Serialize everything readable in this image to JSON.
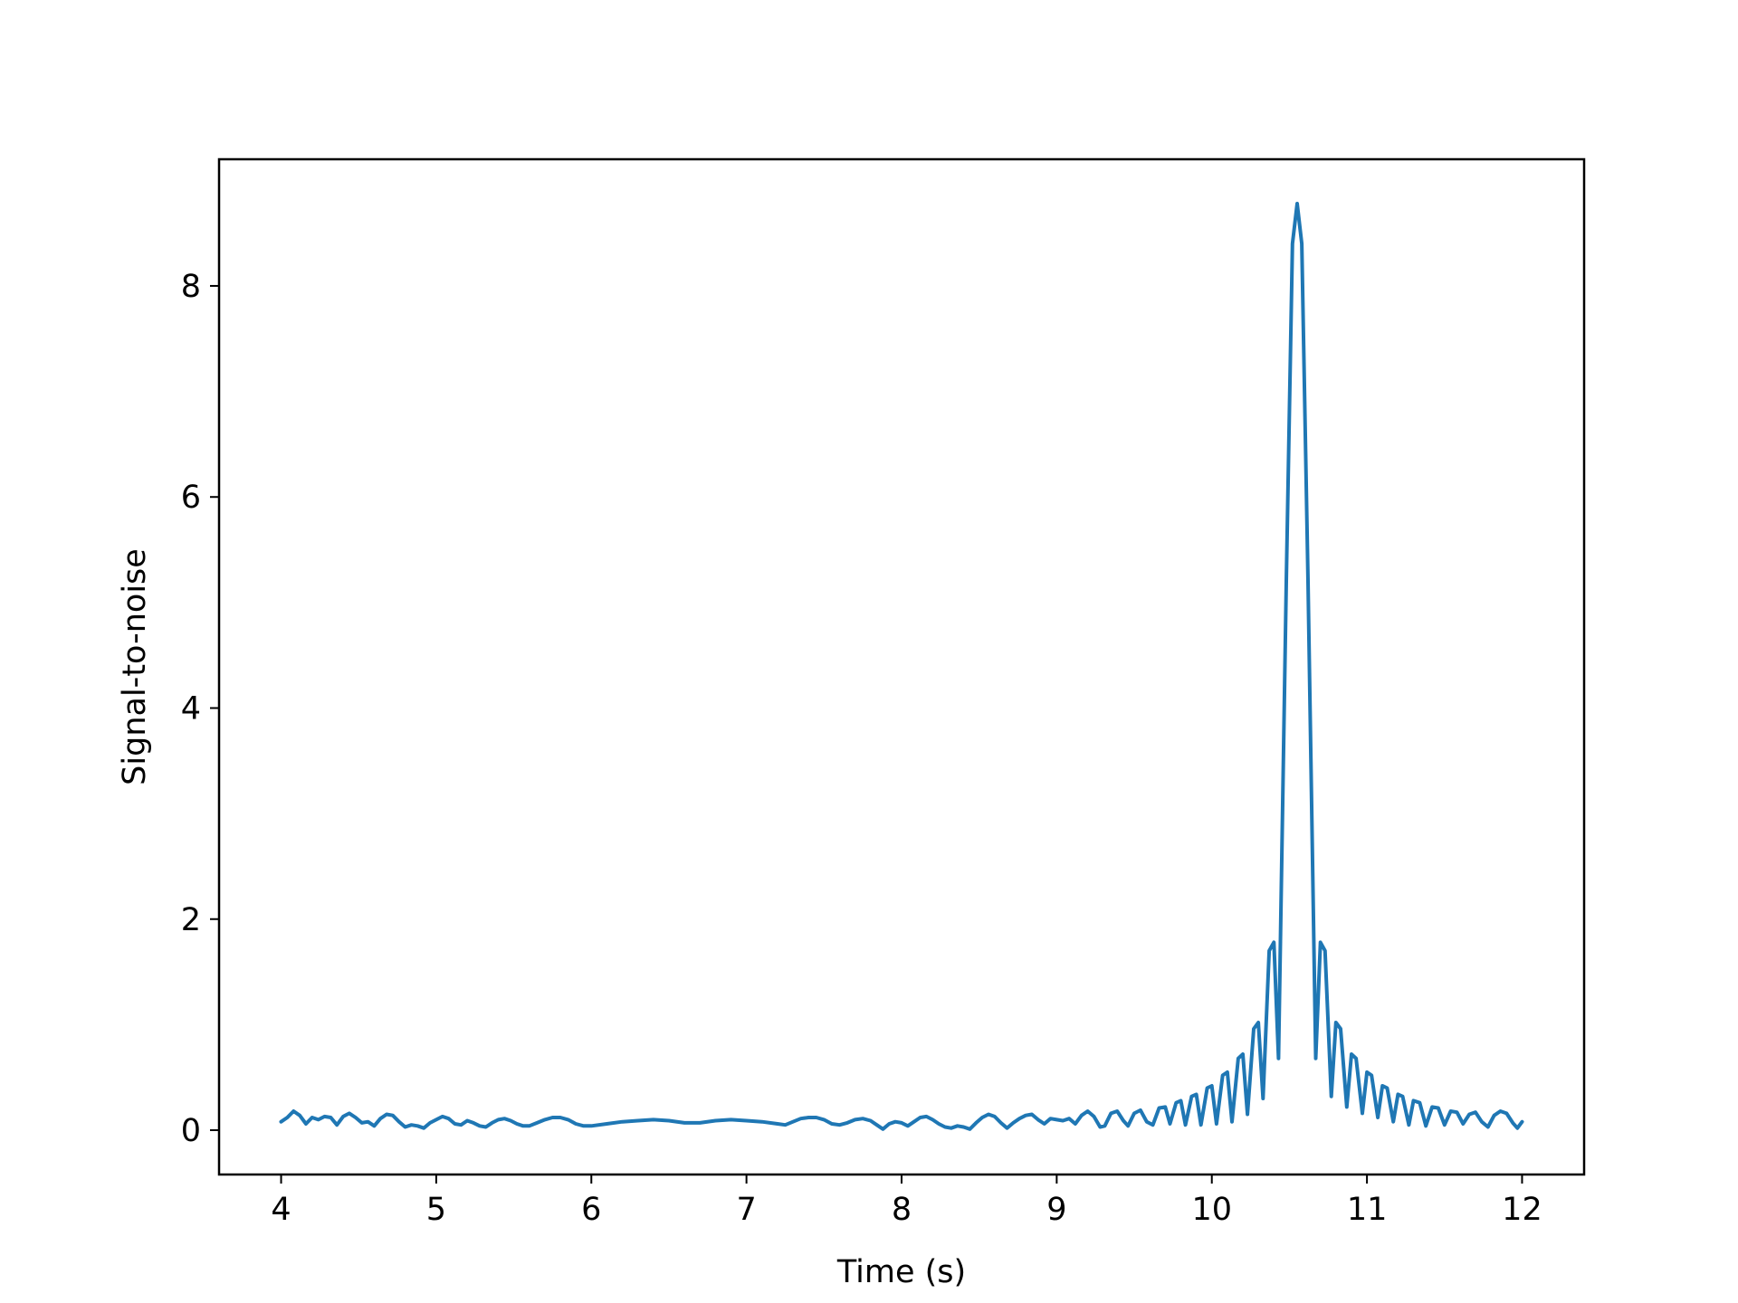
{
  "chart_data": {
    "type": "line",
    "title": "",
    "xlabel": "Time (s)",
    "ylabel": "Signal-to-noise",
    "xlim": [
      3.6,
      12.4
    ],
    "ylim": [
      -0.42,
      9.2
    ],
    "x_ticks": [
      4,
      5,
      6,
      7,
      8,
      9,
      10,
      11,
      12
    ],
    "x_tick_labels": [
      "4",
      "5",
      "6",
      "7",
      "8",
      "9",
      "10",
      "11",
      "12"
    ],
    "y_ticks": [
      0,
      2,
      4,
      6,
      8
    ],
    "y_tick_labels": [
      "0",
      "2",
      "4",
      "6",
      "8"
    ],
    "grid": false,
    "legend": "none",
    "series": [
      {
        "color": "#1f77b4",
        "points": [
          [
            4.0,
            0.08
          ],
          [
            4.04,
            0.12
          ],
          [
            4.08,
            0.18
          ],
          [
            4.12,
            0.14
          ],
          [
            4.16,
            0.06
          ],
          [
            4.2,
            0.12
          ],
          [
            4.24,
            0.1
          ],
          [
            4.28,
            0.13
          ],
          [
            4.32,
            0.12
          ],
          [
            4.36,
            0.05
          ],
          [
            4.4,
            0.13
          ],
          [
            4.44,
            0.16
          ],
          [
            4.48,
            0.12
          ],
          [
            4.52,
            0.07
          ],
          [
            4.56,
            0.08
          ],
          [
            4.6,
            0.04
          ],
          [
            4.64,
            0.11
          ],
          [
            4.68,
            0.15
          ],
          [
            4.72,
            0.14
          ],
          [
            4.76,
            0.08
          ],
          [
            4.8,
            0.03
          ],
          [
            4.84,
            0.05
          ],
          [
            4.88,
            0.04
          ],
          [
            4.92,
            0.02
          ],
          [
            4.96,
            0.07
          ],
          [
            5.0,
            0.1
          ],
          [
            5.04,
            0.13
          ],
          [
            5.08,
            0.11
          ],
          [
            5.12,
            0.06
          ],
          [
            5.16,
            0.05
          ],
          [
            5.2,
            0.09
          ],
          [
            5.24,
            0.07
          ],
          [
            5.28,
            0.04
          ],
          [
            5.32,
            0.03
          ],
          [
            5.36,
            0.07
          ],
          [
            5.4,
            0.1
          ],
          [
            5.44,
            0.11
          ],
          [
            5.48,
            0.09
          ],
          [
            5.52,
            0.06
          ],
          [
            5.56,
            0.04
          ],
          [
            5.6,
            0.04
          ],
          [
            5.65,
            0.07
          ],
          [
            5.7,
            0.1
          ],
          [
            5.75,
            0.12
          ],
          [
            5.8,
            0.12
          ],
          [
            5.85,
            0.1
          ],
          [
            5.9,
            0.06
          ],
          [
            5.95,
            0.04
          ],
          [
            6.0,
            0.04
          ],
          [
            6.1,
            0.06
          ],
          [
            6.2,
            0.08
          ],
          [
            6.3,
            0.09
          ],
          [
            6.4,
            0.1
          ],
          [
            6.5,
            0.09
          ],
          [
            6.6,
            0.07
          ],
          [
            6.7,
            0.07
          ],
          [
            6.8,
            0.09
          ],
          [
            6.9,
            0.1
          ],
          [
            7.0,
            0.09
          ],
          [
            7.1,
            0.08
          ],
          [
            7.2,
            0.06
          ],
          [
            7.25,
            0.05
          ],
          [
            7.3,
            0.08
          ],
          [
            7.35,
            0.11
          ],
          [
            7.4,
            0.12
          ],
          [
            7.45,
            0.12
          ],
          [
            7.5,
            0.1
          ],
          [
            7.55,
            0.06
          ],
          [
            7.6,
            0.05
          ],
          [
            7.65,
            0.07
          ],
          [
            7.7,
            0.1
          ],
          [
            7.75,
            0.11
          ],
          [
            7.8,
            0.09
          ],
          [
            7.84,
            0.05
          ],
          [
            7.88,
            0.01
          ],
          [
            7.92,
            0.06
          ],
          [
            7.96,
            0.08
          ],
          [
            8.0,
            0.07
          ],
          [
            8.04,
            0.04
          ],
          [
            8.08,
            0.08
          ],
          [
            8.12,
            0.12
          ],
          [
            8.16,
            0.13
          ],
          [
            8.2,
            0.1
          ],
          [
            8.24,
            0.06
          ],
          [
            8.28,
            0.03
          ],
          [
            8.32,
            0.02
          ],
          [
            8.36,
            0.04
          ],
          [
            8.4,
            0.03
          ],
          [
            8.44,
            0.01
          ],
          [
            8.48,
            0.07
          ],
          [
            8.52,
            0.12
          ],
          [
            8.56,
            0.15
          ],
          [
            8.6,
            0.13
          ],
          [
            8.64,
            0.07
          ],
          [
            8.68,
            0.02
          ],
          [
            8.72,
            0.07
          ],
          [
            8.76,
            0.11
          ],
          [
            8.8,
            0.14
          ],
          [
            8.84,
            0.15
          ],
          [
            8.88,
            0.1
          ],
          [
            8.92,
            0.06
          ],
          [
            8.96,
            0.11
          ],
          [
            9.0,
            0.1
          ],
          [
            9.04,
            0.09
          ],
          [
            9.08,
            0.11
          ],
          [
            9.12,
            0.06
          ],
          [
            9.16,
            0.14
          ],
          [
            9.2,
            0.18
          ],
          [
            9.24,
            0.13
          ],
          [
            9.28,
            0.03
          ],
          [
            9.31,
            0.04
          ],
          [
            9.35,
            0.16
          ],
          [
            9.39,
            0.18
          ],
          [
            9.43,
            0.09
          ],
          [
            9.46,
            0.04
          ],
          [
            9.5,
            0.16
          ],
          [
            9.54,
            0.19
          ],
          [
            9.58,
            0.08
          ],
          [
            9.62,
            0.05
          ],
          [
            9.66,
            0.21
          ],
          [
            9.7,
            0.22
          ],
          [
            9.73,
            0.06
          ],
          [
            9.77,
            0.26
          ],
          [
            9.8,
            0.28
          ],
          [
            9.83,
            0.05
          ],
          [
            9.87,
            0.32
          ],
          [
            9.9,
            0.34
          ],
          [
            9.93,
            0.05
          ],
          [
            9.97,
            0.4
          ],
          [
            10.0,
            0.42
          ],
          [
            10.03,
            0.06
          ],
          [
            10.07,
            0.52
          ],
          [
            10.1,
            0.55
          ],
          [
            10.13,
            0.08
          ],
          [
            10.17,
            0.68
          ],
          [
            10.2,
            0.72
          ],
          [
            10.23,
            0.15
          ],
          [
            10.27,
            0.96
          ],
          [
            10.3,
            1.02
          ],
          [
            10.33,
            0.3
          ],
          [
            10.37,
            1.7
          ],
          [
            10.4,
            1.78
          ],
          [
            10.43,
            0.68
          ],
          [
            10.48,
            5.2
          ],
          [
            10.52,
            8.4
          ],
          [
            10.55,
            8.78
          ],
          [
            10.58,
            8.4
          ],
          [
            10.62,
            5.2
          ],
          [
            10.67,
            0.68
          ],
          [
            10.7,
            1.78
          ],
          [
            10.73,
            1.7
          ],
          [
            10.77,
            0.32
          ],
          [
            10.8,
            1.02
          ],
          [
            10.83,
            0.96
          ],
          [
            10.87,
            0.22
          ],
          [
            10.9,
            0.72
          ],
          [
            10.93,
            0.68
          ],
          [
            10.97,
            0.16
          ],
          [
            11.0,
            0.55
          ],
          [
            11.03,
            0.52
          ],
          [
            11.07,
            0.12
          ],
          [
            11.1,
            0.42
          ],
          [
            11.13,
            0.4
          ],
          [
            11.17,
            0.08
          ],
          [
            11.2,
            0.34
          ],
          [
            11.23,
            0.32
          ],
          [
            11.27,
            0.05
          ],
          [
            11.3,
            0.28
          ],
          [
            11.34,
            0.26
          ],
          [
            11.38,
            0.04
          ],
          [
            11.42,
            0.22
          ],
          [
            11.46,
            0.21
          ],
          [
            11.5,
            0.05
          ],
          [
            11.54,
            0.18
          ],
          [
            11.58,
            0.17
          ],
          [
            11.62,
            0.06
          ],
          [
            11.66,
            0.15
          ],
          [
            11.7,
            0.17
          ],
          [
            11.74,
            0.08
          ],
          [
            11.78,
            0.03
          ],
          [
            11.82,
            0.14
          ],
          [
            11.86,
            0.18
          ],
          [
            11.9,
            0.16
          ],
          [
            11.94,
            0.07
          ],
          [
            11.97,
            0.02
          ],
          [
            12.0,
            0.08
          ]
        ]
      }
    ]
  }
}
